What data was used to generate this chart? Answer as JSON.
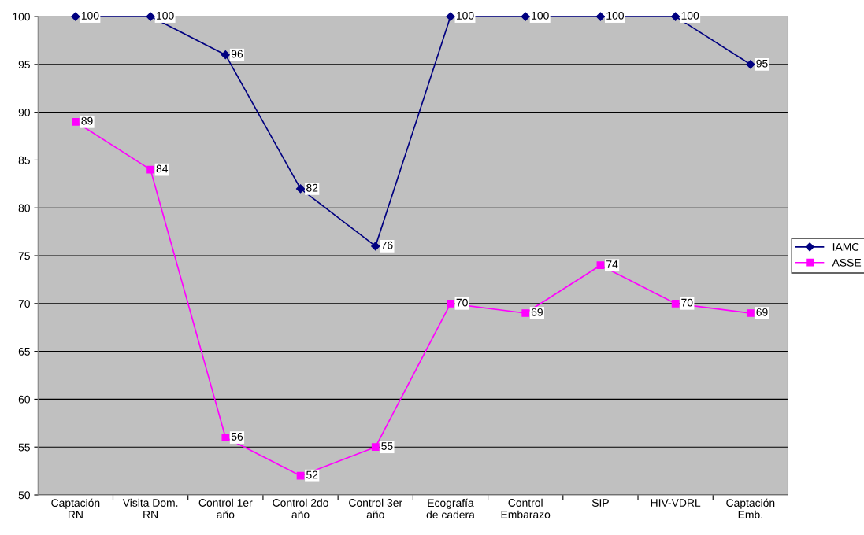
{
  "chart_data": {
    "type": "line",
    "categories": [
      "Captación\nRN",
      "Visita Dom.\nRN",
      "Control 1er\naño",
      "Control 2do\naño",
      "Control 3er\naño",
      "Ecografía\nde cadera",
      "Control\nEmbarazo",
      "SIP",
      "HIV-VDRL",
      "Captación\nEmb."
    ],
    "series": [
      {
        "name": "IAMC",
        "color": "#000080",
        "marker": "diamond",
        "values": [
          100,
          100,
          96,
          82,
          76,
          100,
          100,
          100,
          100,
          95
        ]
      },
      {
        "name": "ASSE",
        "color": "#ff00ff",
        "marker": "square",
        "values": [
          89,
          84,
          56,
          52,
          55,
          70,
          69,
          74,
          70,
          69
        ]
      }
    ],
    "ylim": [
      50,
      100
    ],
    "yticks": [
      50,
      55,
      60,
      65,
      70,
      75,
      80,
      85,
      90,
      95,
      100
    ],
    "grid": "y",
    "legend": "right",
    "data_labels": true
  }
}
